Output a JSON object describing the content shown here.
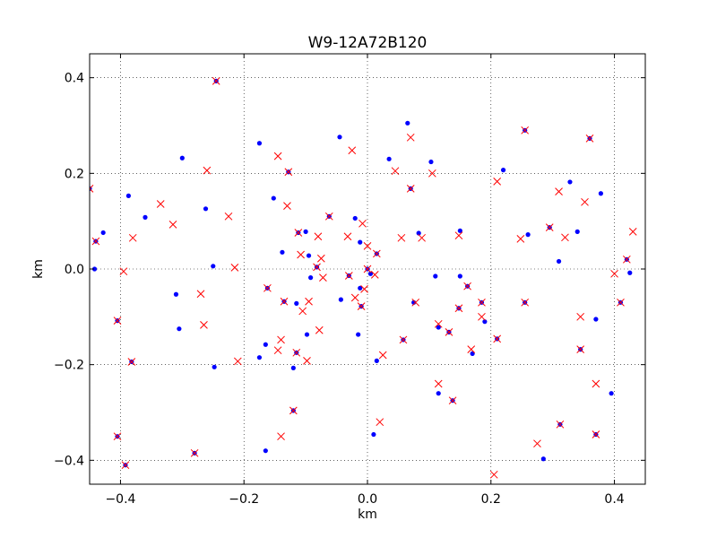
{
  "chart_data": {
    "type": "scatter",
    "title": "W9-12A72B120",
    "xlabel": "km",
    "ylabel": "km",
    "xlim": [
      -0.45,
      0.45
    ],
    "ylim": [
      -0.45,
      0.45
    ],
    "xticks": [
      -0.4,
      -0.2,
      0.0,
      0.2,
      0.4
    ],
    "yticks": [
      -0.4,
      -0.2,
      0.0,
      0.2,
      0.4
    ],
    "xtick_labels": [
      "−0.4",
      "−0.2",
      "0.0",
      "0.2",
      "0.4"
    ],
    "ytick_labels": [
      "−0.4",
      "−0.2",
      "0.0",
      "0.2",
      "0.4"
    ],
    "grid": true,
    "series": [
      {
        "marker": "dot",
        "color": "#0000ff",
        "points": [
          [
            -0.45,
            0.168
          ],
          [
            -0.44,
            0.058
          ],
          [
            -0.442,
            0.0
          ],
          [
            -0.428,
            0.076
          ],
          [
            -0.405,
            -0.108
          ],
          [
            -0.405,
            -0.35
          ],
          [
            -0.392,
            -0.41
          ],
          [
            -0.387,
            0.153
          ],
          [
            -0.382,
            -0.194
          ],
          [
            -0.36,
            0.108
          ],
          [
            -0.31,
            -0.053
          ],
          [
            -0.305,
            -0.125
          ],
          [
            -0.3,
            0.232
          ],
          [
            -0.28,
            -0.385
          ],
          [
            -0.262,
            0.126
          ],
          [
            -0.25,
            0.006
          ],
          [
            -0.248,
            -0.205
          ],
          [
            -0.245,
            0.393
          ],
          [
            -0.175,
            0.263
          ],
          [
            -0.175,
            -0.185
          ],
          [
            -0.165,
            -0.158
          ],
          [
            -0.165,
            -0.38
          ],
          [
            -0.162,
            -0.04
          ],
          [
            -0.152,
            0.148
          ],
          [
            -0.138,
            0.035
          ],
          [
            -0.135,
            -0.068
          ],
          [
            -0.128,
            0.203
          ],
          [
            -0.12,
            -0.207
          ],
          [
            -0.12,
            -0.296
          ],
          [
            -0.115,
            -0.175
          ],
          [
            -0.115,
            -0.072
          ],
          [
            -0.112,
            0.076
          ],
          [
            -0.1,
            0.078
          ],
          [
            -0.098,
            -0.137
          ],
          [
            -0.095,
            0.028
          ],
          [
            -0.092,
            -0.018
          ],
          [
            -0.082,
            0.004
          ],
          [
            -0.062,
            0.11
          ],
          [
            -0.045,
            0.276
          ],
          [
            -0.043,
            -0.064
          ],
          [
            -0.03,
            -0.014
          ],
          [
            -0.02,
            0.106
          ],
          [
            -0.015,
            -0.137
          ],
          [
            -0.012,
            0.056
          ],
          [
            -0.012,
            -0.04
          ],
          [
            -0.01,
            -0.078
          ],
          [
            0.0,
            0.0
          ],
          [
            0.005,
            -0.01
          ],
          [
            0.01,
            -0.346
          ],
          [
            0.015,
            -0.192
          ],
          [
            0.015,
            0.032
          ],
          [
            0.035,
            0.23
          ],
          [
            0.058,
            -0.148
          ],
          [
            0.065,
            0.305
          ],
          [
            0.07,
            0.168
          ],
          [
            0.075,
            -0.07
          ],
          [
            0.083,
            0.075
          ],
          [
            0.103,
            0.224
          ],
          [
            0.11,
            -0.015
          ],
          [
            0.115,
            -0.26
          ],
          [
            0.115,
            -0.122
          ],
          [
            0.132,
            -0.132
          ],
          [
            0.138,
            -0.275
          ],
          [
            0.148,
            -0.082
          ],
          [
            0.15,
            0.08
          ],
          [
            0.15,
            -0.015
          ],
          [
            0.162,
            -0.036
          ],
          [
            0.17,
            -0.177
          ],
          [
            0.185,
            -0.07
          ],
          [
            0.19,
            -0.11
          ],
          [
            0.21,
            -0.146
          ],
          [
            0.22,
            0.207
          ],
          [
            0.26,
            0.072
          ],
          [
            0.255,
            -0.07
          ],
          [
            0.255,
            0.29
          ],
          [
            0.285,
            -0.397
          ],
          [
            0.295,
            0.087
          ],
          [
            0.312,
            -0.325
          ],
          [
            0.31,
            0.016
          ],
          [
            0.328,
            0.182
          ],
          [
            0.34,
            0.078
          ],
          [
            0.345,
            -0.168
          ],
          [
            0.36,
            0.273
          ],
          [
            0.37,
            -0.105
          ],
          [
            0.37,
            -0.346
          ],
          [
            0.378,
            0.158
          ],
          [
            0.395,
            -0.26
          ],
          [
            0.41,
            -0.07
          ],
          [
            0.42,
            0.02
          ],
          [
            0.425,
            -0.008
          ]
        ]
      },
      {
        "marker": "x",
        "color": "#ff0000",
        "points": [
          [
            -0.45,
            0.168
          ],
          [
            -0.44,
            0.058
          ],
          [
            -0.405,
            -0.108
          ],
          [
            -0.405,
            -0.35
          ],
          [
            -0.392,
            -0.41
          ],
          [
            -0.395,
            -0.005
          ],
          [
            -0.38,
            0.065
          ],
          [
            -0.382,
            -0.194
          ],
          [
            -0.335,
            0.136
          ],
          [
            -0.315,
            0.093
          ],
          [
            -0.28,
            -0.385
          ],
          [
            -0.27,
            -0.052
          ],
          [
            -0.265,
            -0.117
          ],
          [
            -0.26,
            0.206
          ],
          [
            -0.245,
            0.393
          ],
          [
            -0.225,
            0.11
          ],
          [
            -0.215,
            0.003
          ],
          [
            -0.21,
            -0.193
          ],
          [
            -0.162,
            -0.04
          ],
          [
            -0.145,
            -0.17
          ],
          [
            -0.145,
            0.236
          ],
          [
            -0.14,
            -0.35
          ],
          [
            -0.14,
            -0.148
          ],
          [
            -0.135,
            -0.068
          ],
          [
            -0.13,
            0.132
          ],
          [
            -0.128,
            0.203
          ],
          [
            -0.12,
            -0.296
          ],
          [
            -0.115,
            -0.175
          ],
          [
            -0.112,
            0.076
          ],
          [
            -0.105,
            -0.088
          ],
          [
            -0.108,
            0.03
          ],
          [
            -0.098,
            -0.192
          ],
          [
            -0.095,
            -0.068
          ],
          [
            -0.082,
            0.004
          ],
          [
            -0.078,
            -0.128
          ],
          [
            -0.08,
            0.068
          ],
          [
            -0.075,
            0.022
          ],
          [
            -0.072,
            -0.018
          ],
          [
            -0.062,
            0.11
          ],
          [
            -0.032,
            0.068
          ],
          [
            -0.03,
            -0.014
          ],
          [
            -0.025,
            0.248
          ],
          [
            -0.02,
            -0.06
          ],
          [
            -0.01,
            -0.078
          ],
          [
            -0.008,
            0.095
          ],
          [
            -0.005,
            -0.042
          ],
          [
            0.0,
            0.0
          ],
          [
            0.0,
            0.048
          ],
          [
            0.012,
            -0.012
          ],
          [
            0.015,
            0.032
          ],
          [
            0.02,
            -0.32
          ],
          [
            0.025,
            -0.18
          ],
          [
            0.045,
            0.205
          ],
          [
            0.055,
            0.065
          ],
          [
            0.058,
            -0.148
          ],
          [
            0.07,
            0.168
          ],
          [
            0.07,
            0.275
          ],
          [
            0.078,
            -0.07
          ],
          [
            0.088,
            0.065
          ],
          [
            0.105,
            0.2
          ],
          [
            0.115,
            -0.24
          ],
          [
            0.115,
            -0.115
          ],
          [
            0.132,
            -0.132
          ],
          [
            0.138,
            -0.275
          ],
          [
            0.148,
            0.07
          ],
          [
            0.148,
            -0.082
          ],
          [
            0.162,
            -0.036
          ],
          [
            0.168,
            -0.168
          ],
          [
            0.185,
            -0.07
          ],
          [
            0.185,
            -0.1
          ],
          [
            0.205,
            -0.43
          ],
          [
            0.21,
            -0.146
          ],
          [
            0.21,
            0.183
          ],
          [
            0.248,
            0.063
          ],
          [
            0.255,
            -0.07
          ],
          [
            0.255,
            0.29
          ],
          [
            0.275,
            -0.365
          ],
          [
            0.295,
            0.087
          ],
          [
            0.31,
            0.162
          ],
          [
            0.312,
            -0.325
          ],
          [
            0.32,
            0.066
          ],
          [
            0.345,
            -0.168
          ],
          [
            0.345,
            -0.1
          ],
          [
            0.352,
            0.14
          ],
          [
            0.36,
            0.273
          ],
          [
            0.37,
            -0.24
          ],
          [
            0.37,
            -0.346
          ],
          [
            0.4,
            -0.01
          ],
          [
            0.41,
            -0.07
          ],
          [
            0.42,
            0.02
          ],
          [
            0.43,
            0.078
          ]
        ]
      }
    ]
  }
}
